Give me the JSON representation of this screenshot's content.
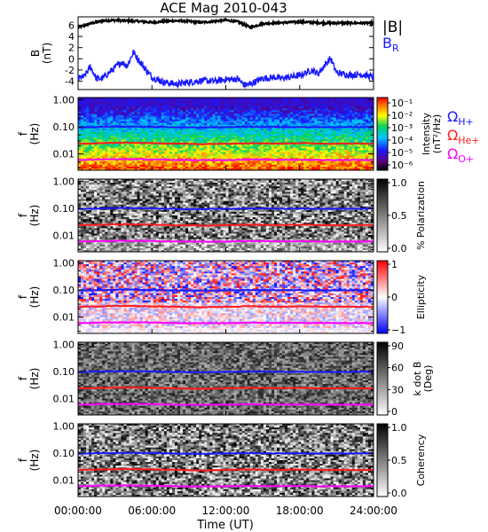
{
  "title": "ACE Mag 2010-043",
  "colors": {
    "B_total": "#000000",
    "B_R": "#1a1aff",
    "gyro_H": "#1a1aff",
    "gyro_He": "#ff1a1a",
    "gyro_O": "#ff00ff"
  },
  "chart_data": [
    {
      "type": "line",
      "panel": "magnetic-field",
      "ylabel": "B (nT)",
      "ylim": [
        -5.5,
        7.5
      ],
      "y_ticks": [
        "6",
        "4",
        "2",
        "0",
        "-2",
        "-4"
      ],
      "y_tick_values": [
        6,
        4,
        2,
        0,
        -2,
        -4
      ],
      "x_range_hours": [
        0,
        24
      ],
      "legend": [
        "|B|",
        "B_R"
      ],
      "legend_B": "|B|",
      "legend_BR_main": "B",
      "legend_BR_sub": "R",
      "series": [
        {
          "name": "|B|",
          "x_hours": [
            0,
            1,
            2,
            3,
            4,
            5,
            6,
            7,
            8,
            9,
            10,
            11,
            12,
            13,
            14,
            15,
            16,
            17,
            18,
            19,
            20,
            21,
            22,
            23,
            24
          ],
          "values": [
            5.6,
            6.3,
            6.8,
            6.9,
            6.8,
            6.7,
            6.5,
            6.7,
            6.8,
            6.7,
            6.5,
            6.7,
            6.9,
            6.6,
            5.6,
            6.3,
            6.4,
            6.5,
            6.6,
            6.5,
            6.4,
            6.4,
            6.4,
            6.4,
            6.4
          ]
        },
        {
          "name": "B_R",
          "x_hours": [
            0,
            0.5,
            1,
            1.5,
            2,
            2.5,
            3,
            3.5,
            4,
            4.5,
            5,
            6,
            7,
            8,
            9,
            10,
            11,
            12,
            13,
            13.5,
            14,
            15,
            16,
            16.5,
            17,
            18,
            19,
            19.5,
            20,
            20.5,
            21,
            22,
            23,
            24
          ],
          "values": [
            -3.5,
            -3.2,
            -1.4,
            -3.6,
            -3.5,
            -2.5,
            -1.6,
            -0.6,
            -1.2,
            1.2,
            -0.5,
            -3.3,
            -4.2,
            -4.5,
            -4.2,
            -3.9,
            -4.0,
            -3.7,
            -3.6,
            -4.7,
            -4.5,
            -3.5,
            -3.3,
            -3.5,
            -3.3,
            -3.0,
            -2.0,
            -2.7,
            -1.2,
            0.1,
            -2.5,
            -2.9,
            -2.8,
            -3.3
          ]
        }
      ]
    },
    {
      "type": "heatmap",
      "panel": "intensity",
      "ylabel": "f (Hz)",
      "yscale": "log",
      "y_ticks": [
        "1.00",
        "0.10",
        "0.01"
      ],
      "colorbar_label": "Intensity (nT²/Hz)",
      "colorbar_label_line1": "Intensity",
      "colorbar_label_line2": "(nT²/Hz)",
      "colorbar_ticks": [
        "10⁻¹",
        "10⁻²",
        "10⁻³",
        "10⁻⁴",
        "10⁻⁵",
        "10⁻⁶"
      ],
      "colorbar_range": [
        1e-06,
        0.1
      ],
      "legend": [
        "Ω H+",
        "Ω He+",
        "Ω O+"
      ],
      "legend_items": [
        {
          "sym": "Ω",
          "sub": "H+"
        },
        {
          "sym": "Ω",
          "sub": "He+"
        },
        {
          "sym": "Ω",
          "sub": "O+"
        }
      ]
    },
    {
      "type": "heatmap",
      "panel": "polarization",
      "ylabel": "f (Hz)",
      "yscale": "log",
      "y_ticks": [
        "1.00",
        "0.10",
        "0.01"
      ],
      "colorbar_label": "% Polarization",
      "colorbar_ticks": [
        "1.0",
        "0.5",
        "0.0"
      ],
      "colorbar_range": [
        0,
        1
      ]
    },
    {
      "type": "heatmap",
      "panel": "ellipticity",
      "ylabel": "f (Hz)",
      "yscale": "log",
      "y_ticks": [
        "1.00",
        "0.10",
        "0.01"
      ],
      "colorbar_label": "Ellipticity",
      "colorbar_ticks": [
        "1",
        "0",
        "−1"
      ],
      "colorbar_range": [
        -1,
        1
      ]
    },
    {
      "type": "heatmap",
      "panel": "k-dot-b",
      "ylabel": "f (Hz)",
      "yscale": "log",
      "y_ticks": [
        "1.00",
        "0.10",
        "0.01"
      ],
      "colorbar_label": "k dot B (Deg)",
      "colorbar_label_line1": "k dot B",
      "colorbar_label_line2": "(Deg)",
      "colorbar_ticks": [
        "90",
        "60",
        "30",
        "0"
      ],
      "colorbar_range": [
        0,
        90
      ]
    },
    {
      "type": "heatmap",
      "panel": "coherency",
      "ylabel": "f (Hz)",
      "yscale": "log",
      "y_ticks": [
        "1.00",
        "0.10",
        "0.01"
      ],
      "colorbar_label": "Coherency",
      "colorbar_ticks": [
        "1.0",
        "0.5",
        "0.0"
      ],
      "colorbar_range": [
        0,
        1
      ]
    }
  ],
  "gyrofrequencies": {
    "x_hours": [
      0,
      2,
      4,
      6,
      8,
      10,
      12,
      14,
      16,
      18,
      20,
      22,
      24
    ],
    "H_plus_hz": [
      0.095,
      0.1,
      0.103,
      0.1,
      0.096,
      0.094,
      0.097,
      0.1,
      0.098,
      0.098,
      0.097,
      0.097,
      0.098
    ],
    "He_plus_hz": [
      0.024,
      0.025,
      0.026,
      0.025,
      0.024,
      0.023,
      0.024,
      0.025,
      0.024,
      0.025,
      0.024,
      0.024,
      0.024
    ],
    "O_plus_hz": [
      0.006,
      0.0063,
      0.0064,
      0.0063,
      0.006,
      0.0059,
      0.006,
      0.0062,
      0.0061,
      0.0061,
      0.006,
      0.006,
      0.006
    ]
  },
  "x_axis": {
    "ticks": [
      "00:00:00",
      "06:00:00",
      "12:00:00",
      "18:00:00",
      "24:00:00"
    ],
    "tick_hours": [
      0,
      6,
      12,
      18,
      24
    ],
    "label": "Time (UT)"
  }
}
